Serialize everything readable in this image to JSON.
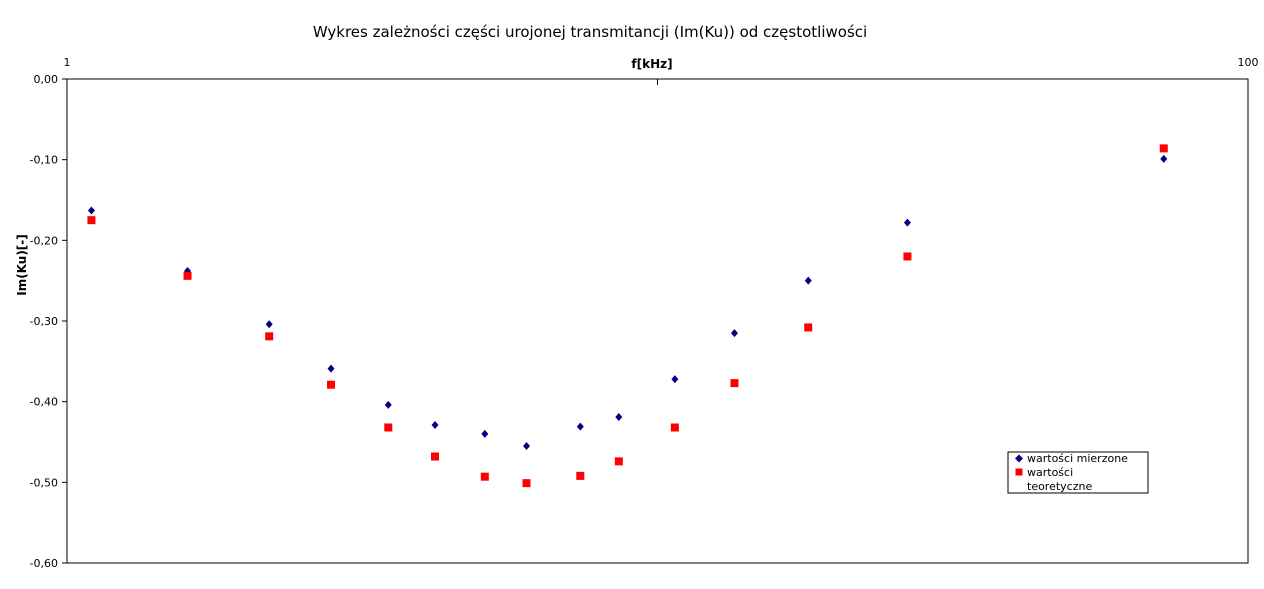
{
  "chart_data": {
    "type": "scatter",
    "title": "Wykres zależności części urojonej transmitancji (Im(Ku)) od częstotliwości",
    "xlabel": "f[kHz]",
    "ylabel": "Im(Ku)[-]",
    "x_scale": "log",
    "x_position": "top",
    "xlim": [
      1,
      100
    ],
    "ylim": [
      -0.6,
      0
    ],
    "x_ticks": [
      "1",
      "100"
    ],
    "y_ticks": [
      "0,00",
      "-0,10",
      "-0,20",
      "-0,30",
      "-0,40",
      "-0,50",
      "-0,60"
    ],
    "grid": false,
    "legend_position": "bottom-right",
    "series": [
      {
        "name": "wartości mierzone",
        "marker": "diamond",
        "color": "#000080",
        "points": [
          {
            "x": 1.1,
            "y": -0.163
          },
          {
            "x": 1.6,
            "y": -0.238
          },
          {
            "x": 2.2,
            "y": -0.304
          },
          {
            "x": 2.8,
            "y": -0.359
          },
          {
            "x": 3.5,
            "y": -0.404
          },
          {
            "x": 4.2,
            "y": -0.429
          },
          {
            "x": 5.1,
            "y": -0.44
          },
          {
            "x": 6.0,
            "y": -0.455
          },
          {
            "x": 7.4,
            "y": -0.431
          },
          {
            "x": 8.6,
            "y": -0.419
          },
          {
            "x": 10.7,
            "y": -0.372
          },
          {
            "x": 13.5,
            "y": -0.315
          },
          {
            "x": 18.0,
            "y": -0.25
          },
          {
            "x": 26.5,
            "y": -0.178
          },
          {
            "x": 72.0,
            "y": -0.099
          }
        ]
      },
      {
        "name": "wartości teoretyczne",
        "marker": "square",
        "color": "#ff0000",
        "points": [
          {
            "x": 1.1,
            "y": -0.175
          },
          {
            "x": 1.6,
            "y": -0.244
          },
          {
            "x": 2.2,
            "y": -0.319
          },
          {
            "x": 2.8,
            "y": -0.379
          },
          {
            "x": 3.5,
            "y": -0.432
          },
          {
            "x": 4.2,
            "y": -0.468
          },
          {
            "x": 5.1,
            "y": -0.493
          },
          {
            "x": 6.0,
            "y": -0.501
          },
          {
            "x": 7.4,
            "y": -0.492
          },
          {
            "x": 8.6,
            "y": -0.474
          },
          {
            "x": 10.7,
            "y": -0.432
          },
          {
            "x": 13.5,
            "y": -0.377
          },
          {
            "x": 18.0,
            "y": -0.308
          },
          {
            "x": 26.5,
            "y": -0.22
          },
          {
            "x": 72.0,
            "y": -0.086
          }
        ]
      }
    ]
  }
}
